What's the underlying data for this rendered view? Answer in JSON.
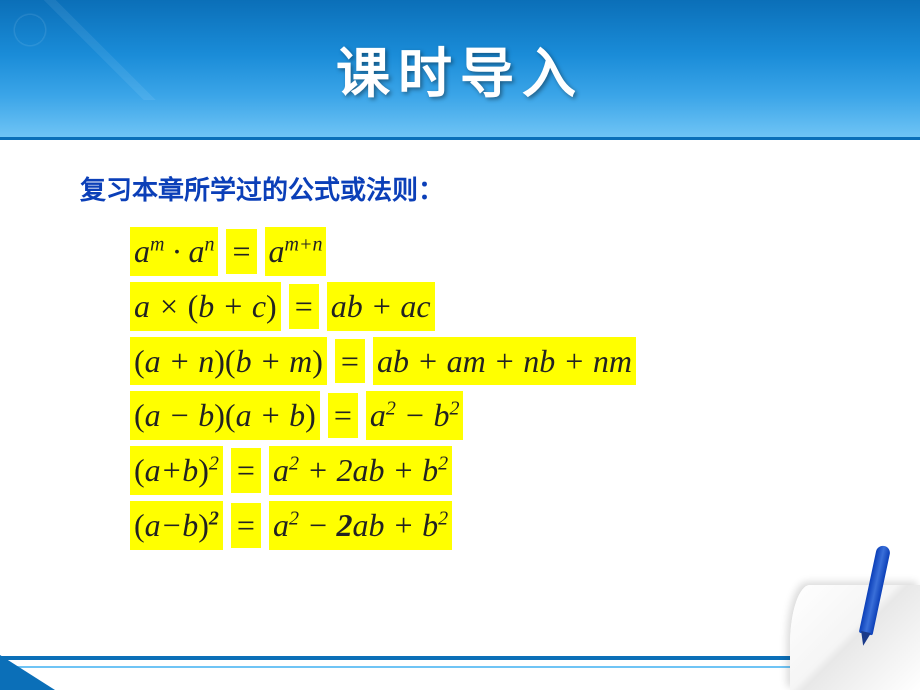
{
  "header": {
    "title": "课时导入",
    "bg_gradient": [
      "#0b6fb8",
      "#1a8cd8",
      "#3ba5e8",
      "#6fc4f5"
    ],
    "title_color": "#ffffff",
    "title_fontsize": 54
  },
  "subtitle": {
    "text": "复习本章所学过的公式或法则：",
    "color": "#0b3fb8",
    "fontsize": 26
  },
  "formulas": [
    {
      "lhs_html": "a<sup>m</sup> · a<sup>n</sup>",
      "rhs_html": "a<sup>m+n</sup>",
      "eq": "="
    },
    {
      "lhs_html": "a × <span class='paren'>(</span>b + c<span class='paren'>)</span>",
      "rhs_html": "ab + ac",
      "eq": "="
    },
    {
      "lhs_html": "<span class='paren'>(</span>a + n<span class='paren'>)(</span>b + m<span class='paren'>)</span>",
      "rhs_html": "ab + am + nb + nm",
      "eq": "="
    },
    {
      "lhs_html": "<span class='paren'>(</span>a − b<span class='paren'>)(</span>a + b<span class='paren'>)</span>",
      "rhs_html": "a<sup>2</sup> − b<sup>2</sup>",
      "eq": "="
    },
    {
      "lhs_html": "<span class='paren'>(</span>a+b<span class='paren'>)</span><sup>2</sup>",
      "rhs_html": "a<sup>2</sup> + 2ab + b<sup>2</sup>",
      "eq": "="
    },
    {
      "lhs_html": "<span class='paren'>(</span>a−b<span class='paren'>)</span><sup><b>2</b></sup>",
      "rhs_html": "a<sup>2</sup> − <b>2</b>ab + b<sup>2</sup>",
      "eq": "="
    }
  ],
  "highlight_color": "#ffff00",
  "text_color": "#222222",
  "formula_fontsize": 32,
  "footer": {
    "line_color": "#0b6fb8",
    "line2_color": "#6fc4f5",
    "pen_color": "#0b3fb8"
  }
}
